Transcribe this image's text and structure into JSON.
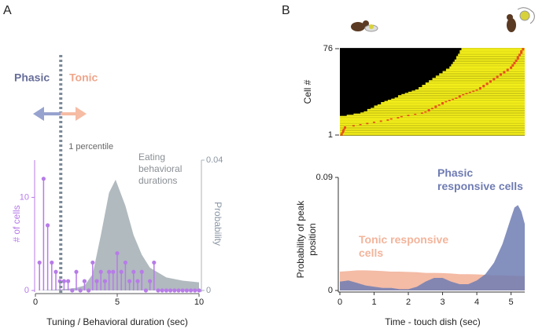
{
  "panel_labels": [
    "A",
    "B"
  ],
  "chart_data": [
    {
      "type": "stem",
      "x": [
        0.25,
        0.5,
        0.75,
        1,
        1.25,
        1.5,
        1.75,
        2,
        2.25,
        2.5,
        2.75,
        3,
        3.25,
        3.5,
        3.75,
        4,
        4.25,
        4.5,
        4.75,
        5,
        5.25,
        5.5,
        5.75,
        6,
        6.25,
        6.5,
        6.75,
        7,
        7.25,
        7.5,
        7.75,
        8,
        8.25,
        8.5,
        8.75,
        9,
        9.25,
        9.5,
        9.75,
        10
      ],
      "values": [
        3,
        12,
        7,
        3,
        2,
        1,
        1,
        1,
        0,
        2,
        0,
        1,
        0,
        3,
        1,
        2,
        1,
        2,
        2,
        4,
        2,
        3,
        1,
        2,
        1,
        2,
        0,
        1,
        3,
        0,
        0,
        0,
        0,
        0,
        0,
        0,
        0,
        0,
        0,
        0
      ],
      "color": "#b77be8",
      "density": {
        "axis": "y2",
        "color": "#a9b3b8",
        "x": [
          0,
          1,
          2,
          2.5,
          3,
          3.5,
          4,
          4.5,
          4.9,
          5.5,
          6,
          6.5,
          7,
          8,
          9,
          10
        ],
        "values": [
          0,
          0.0002,
          0.0005,
          0.0008,
          0.0015,
          0.005,
          0.017,
          0.03,
          0.034,
          0.026,
          0.017,
          0.011,
          0.007,
          0.004,
          0.003,
          0.0025
        ]
      },
      "xlim": [
        0,
        10
      ],
      "xticks": [
        0,
        5,
        10
      ],
      "ylim": [
        0,
        14
      ],
      "yticks": [
        0,
        10
      ],
      "y2lim": [
        0,
        0.04
      ],
      "y2ticks": [
        0,
        0.04
      ],
      "xlabel": "Tuning / Behavioral duration (sec)",
      "ylabel": "# of cells",
      "y2label": "Probability",
      "percentile": {
        "x": 1.55,
        "label": "1 percentile",
        "color": "#7d8b99"
      },
      "annotations": [
        {
          "text": "Phasic",
          "color": "#676e99"
        },
        {
          "text": "Tonic",
          "color": "#f0a58a"
        },
        {
          "text": "Eating behavioral durations",
          "color": "#8a8f94"
        }
      ]
    },
    {
      "type": "heatmap",
      "peaks": [
        0.05,
        0.05,
        0.08,
        0.1,
        0.1,
        0.12,
        0.15,
        0.15,
        0.4,
        0.6,
        0.8,
        1.0,
        1.2,
        1.4,
        1.5,
        1.7,
        1.8,
        2.0,
        2.2,
        2.4,
        2.5,
        2.6,
        2.6,
        2.7,
        2.8,
        2.8,
        2.9,
        3.0,
        3.0,
        3.1,
        3.2,
        3.3,
        3.4,
        3.5,
        3.5,
        3.6,
        3.7,
        3.8,
        3.9,
        4.0,
        4.1,
        4.1,
        4.2,
        4.2,
        4.3,
        4.3,
        4.4,
        4.4,
        4.5,
        4.5,
        4.6,
        4.6,
        4.7,
        4.7,
        4.8,
        4.8,
        4.9,
        4.9,
        5.0,
        5.0,
        5.05,
        5.05,
        5.1,
        5.1,
        5.15,
        5.15,
        5.2,
        5.2,
        5.2,
        5.25,
        5.25,
        5.3,
        5.3,
        5.3,
        5.35,
        5.35
      ],
      "xlim": [
        0,
        5.4
      ],
      "ylim": [
        1,
        76
      ],
      "yticks": [
        1,
        76
      ],
      "ylabel": "Cell #"
    },
    {
      "type": "area",
      "x": [
        0,
        0.25,
        0.5,
        0.75,
        1,
        1.25,
        1.5,
        1.75,
        2,
        2.25,
        2.5,
        2.75,
        3,
        3.25,
        3.5,
        3.75,
        4,
        4.25,
        4.5,
        4.75,
        5,
        5.1,
        5.2,
        5.3,
        5.4
      ],
      "series": [
        {
          "name": "Tonic responsive cells",
          "color": "#f3b49b",
          "values": [
            0.015,
            0.0155,
            0.016,
            0.016,
            0.0158,
            0.0155,
            0.015,
            0.015,
            0.0148,
            0.0145,
            0.014,
            0.014,
            0.0138,
            0.0135,
            0.013,
            0.013,
            0.0128,
            0.0125,
            0.012,
            0.012,
            0.0118,
            0.0117,
            0.0116,
            0.0115,
            0.0115
          ]
        },
        {
          "name": "Phasic responsive cells",
          "color": "#6f7cb3",
          "values": [
            0.007,
            0.008,
            0.006,
            0.004,
            0.003,
            0.002,
            0.002,
            0.001,
            0.001,
            0.003,
            0.007,
            0.01,
            0.01,
            0.007,
            0.005,
            0.005,
            0.008,
            0.013,
            0.022,
            0.037,
            0.058,
            0.066,
            0.068,
            0.063,
            0.053
          ]
        }
      ],
      "xlim": [
        0,
        5.4
      ],
      "xticks": [
        0,
        1,
        2,
        3,
        4,
        5
      ],
      "ylim": [
        0,
        0.09
      ],
      "yticks": [
        0,
        0.09
      ],
      "xlabel": "Time - touch dish (sec)",
      "ylabel": "Probability of peak position"
    }
  ]
}
